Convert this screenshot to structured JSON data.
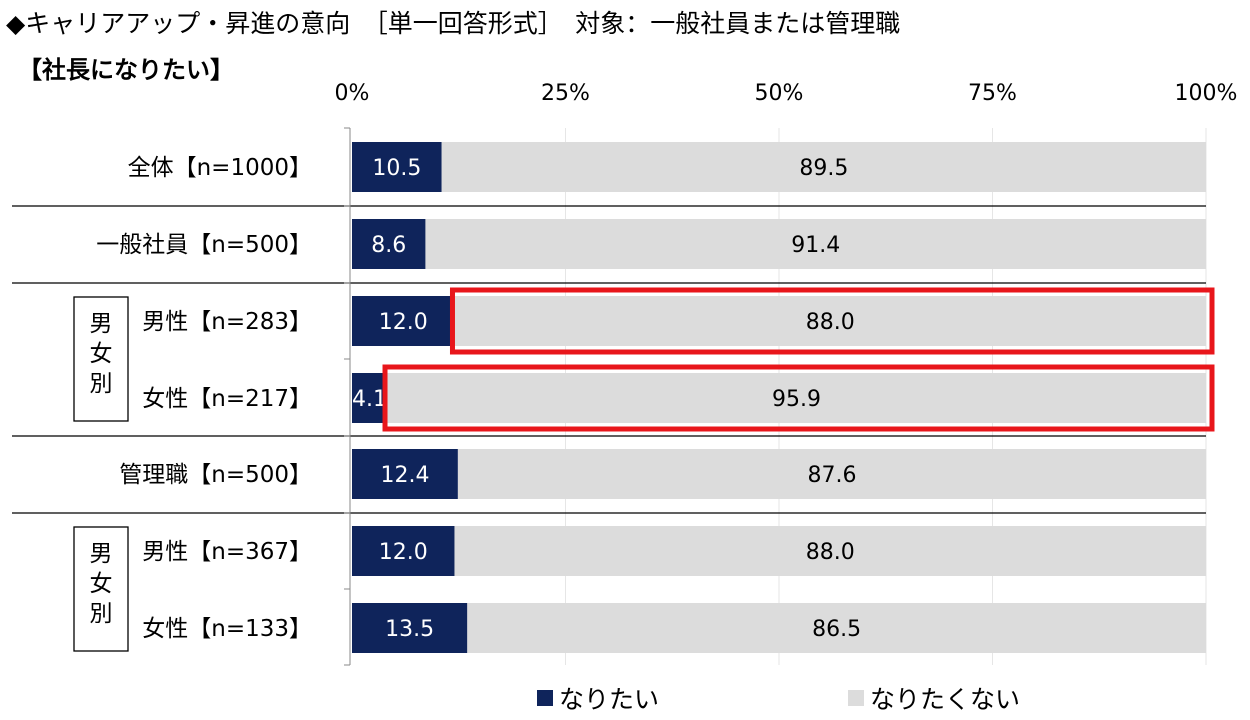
{
  "header": {
    "title": "◆キャリアアップ・昇進の意向　［単一回答形式］　対象：一般社員または管理職"
  },
  "chart_data": {
    "type": "bar",
    "orientation": "horizontal",
    "stacked": true,
    "title": "【社長になりたい】",
    "x_ticks": [
      "0%",
      "25%",
      "50%",
      "75%",
      "100%"
    ],
    "xlim": [
      0,
      100
    ],
    "categories": [
      "全体【n=1000】",
      "一般社員【n=500】",
      "男性【n=283】",
      "女性【n=217】",
      "管理職【n=500】",
      "男性【n=367】",
      "女性【n=133】"
    ],
    "group_labels": [
      "男女別",
      "男女別"
    ],
    "series": [
      {
        "name": "なりたい",
        "color": "#0f245b",
        "values": [
          10.5,
          8.6,
          12.0,
          4.1,
          12.4,
          12.0,
          13.5
        ],
        "labels": [
          "10.5",
          "8.6",
          "12.0",
          "4.1",
          "12.4",
          "12.0",
          "13.5"
        ]
      },
      {
        "name": "なりたくない",
        "color": "#dcdcdc",
        "values": [
          89.5,
          91.4,
          88.0,
          95.9,
          87.6,
          88.0,
          86.5
        ],
        "labels": [
          "89.5",
          "91.4",
          "88.0",
          "95.9",
          "87.6",
          "88.0",
          "86.5"
        ]
      }
    ],
    "highlight_color": "#e8161b",
    "highlighted": [
      {
        "category_index": 2,
        "series_index": 1
      },
      {
        "category_index": 3,
        "series_index": 1
      }
    ],
    "legend_position": "bottom",
    "grid": true
  }
}
